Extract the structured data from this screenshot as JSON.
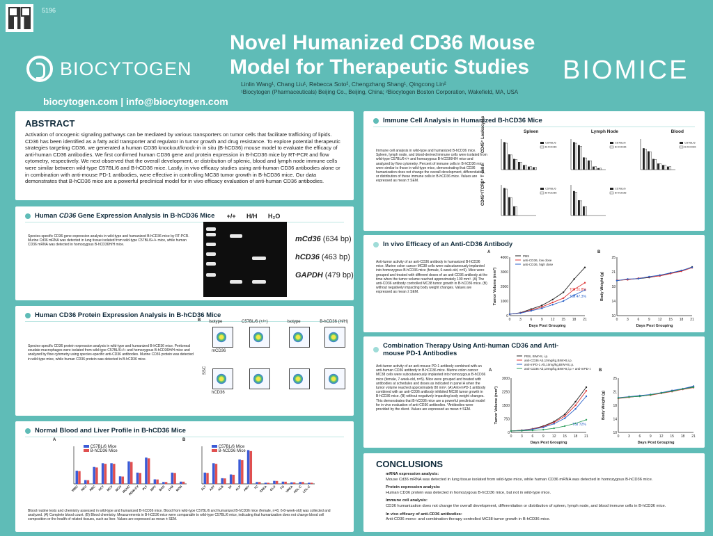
{
  "header": {
    "poster_id": "5196",
    "company": "BIOCYTOGEN",
    "contact": "biocytogen.com  |  info@biocytogen.com",
    "title": "Novel Humanized CD36 Mouse Model for Therapeutic Studies",
    "authors": "Linlin Wang¹, Chang Liu¹, Rebecca Soto², Chengzhang Shang¹, Qingcong Lin²",
    "affiliations": "¹Biocytogen (Pharmaceuticals) Beijing Co., Beijing, China;  ²Biocytogen Boston Corporation, Wakefield, MA, USA",
    "brand_right": "BIOMICE"
  },
  "abstract": {
    "heading": "ABSTRACT",
    "text": "Activation of oncogenic signaling pathways can be mediated by various transporters on tumor cells that facilitate trafficking of lipids. CD36 has been identified as a fatty acid transporter and regulator in tumor growth and drug resistance. To explore potential therapeutic strategies targeting CD36, we generated a human CD36 knockout/knock-in in situ (B-hCD36) mouse model to evaluate the efficacy of anti-human CD36 antibodies. We first confirmed human CD36 gene and protein expression in B-hCD36 mice by RT-PCR and flow cytometry, respectively. We next observed that the overall development, or distribution of splenic, blood and lymph node immune cells were similar between wild-type C57BL/6 and B-hCD36 mice. Lastly, in vivo efficacy studies using anti-human CD36 antibodies alone or in combination with anti-mouse PD-1 antibodies, were effective in controlling MC38 tumor growth in B-hCD36 mice. Our data demonstrates that B-hCD36 mice are a powerful preclinical model for in vivo efficacy evaluation of anti-human CD36 antibodies."
  },
  "gene_expression": {
    "heading_pre": "Human ",
    "heading_it": "CD36",
    "heading_post": " Gene Expression Analysis in B-hCD36 Mice",
    "caption": "Species-specific CD36 gene expression analysis in wild-type and humanized B-hCD36 mice by RT-PCR. Murine Cd36 mRNA was detected in lung tissue isolated from wild-type C57BL/6+/+ mice, while human CD36 mRNA was detected in homozygous B-hCD36H/H mice.",
    "lanes": [
      "+/+",
      "H/H",
      "H₂O"
    ],
    "bands": [
      {
        "gene": "mCd36",
        "size": "(634 bp)"
      },
      {
        "gene": "hCD36",
        "size": "(463 bp)"
      },
      {
        "gene": "GAPDH",
        "size": "(479 bp)"
      }
    ]
  },
  "protein_expression": {
    "heading": "Human CD36 Protein Expression Analysis in B-hCD36 Mice",
    "caption": "Species-specific CD36 protein expression analysis in wild-type and humanized B-hCD36 mice. Peritoneal exudate macrophages were isolated from wild-type C57BL/6+/+ and homozygous B-hCD36H/H mice and analyzed by flow cytometry using species-specific anti-CD36 antibodies. Murine CD36 protein was detected in wild-type mice, while human CD36 protein was detected in B-hCD36 mice.",
    "panel_label": "B",
    "columns": [
      "Isotype",
      "C57BL/6 (+/+)",
      "Isotype",
      "B-hCD36 (H/H)"
    ],
    "row_labels": [
      "mCD36",
      "hCD36"
    ],
    "y_label": "SSC"
  },
  "blood_liver": {
    "heading": "Normal Blood and Liver Profile in B-hCD36 Mice",
    "panel_a": "A",
    "panel_b": "B",
    "legend": [
      "C57BL/6 Mice",
      "B-hCD36 Mice"
    ],
    "a_categories": [
      "WBC",
      "NEU",
      "RBC",
      "HCT",
      "MCV",
      "MCH",
      "MCHC",
      "RDW-CV",
      "PLT",
      "MPV",
      "BAS",
      "LYM",
      "MON"
    ],
    "b_categories": [
      "ALT",
      "AST",
      "ALB",
      "TP",
      "ALP",
      "AMY",
      "TC",
      "CREA",
      "GLU",
      "TG",
      "UREA",
      "HDL-C",
      "LDL-C"
    ],
    "caption": "Blood routine tests and chemistry assessed in wild-type and humanized B-hCD36 mice. Blood from wild-type C57BL/6 and humanized B-hCD36 mice (female, n=8, 6-8-week-old) was collected and analyzed. (A) Complete blood count. (B) Blood chemistry. Measurements in B-hCD36 mice were comparable to wild-type C57BL/6 mice, indicating that humanization does not change blood cell composition or the health of related tissues, such as liver. Values are expressed as mean ± SEM."
  },
  "immune": {
    "heading": "Immune Cell Analysis in Humanized B-hCD36 Mice",
    "caption": "Immune cell analysis in wild-type and humanized B-hCD36 mice. Spleen, lymph node, and blood-derived immune cells were isolated from wild-type C57BL/6+/+ and homozygous B-hCD36H/H mice and analyzed by flow cytometry. Percent of immune cells in B-hCD36 mice were similar to those in wild-type mice, demonstrating that CD36 humanization does not change the overall development, differentiation, or distribution of these immune cells in B-hCD36 mice. Values are expressed as mean ± SEM.",
    "columns": [
      "Spleen",
      "Lymph Node",
      "Blood"
    ],
    "row_labels": [
      "CD45⁺ Leukocytes",
      "CD45⁺/TCRβ⁺ T cells"
    ],
    "legend": [
      "C57BL/6",
      "B-hCD36"
    ]
  },
  "efficacy": {
    "heading": "In vivo Efficacy of an Anti-CD36 Antibody",
    "caption": "Anti-tumor activity of an anti-CD36 antibody in humanized B-hCD36 mice. Murine colon cancer MC38 cells were subcutaneously implanted into homozygous B-hCD36 mice (female, 6-week-old, n=5). Mice were grouped and treated with different doses of an anti-CD36 antibody at the time when the tumor volume reached approximately 100 mm³. (A) The anti-CD36 antibody controlled MC38 tumor growth in B-hCD36 mice. (B) without negatively impacting body weight changes. Values are expressed as mean ± SEM.",
    "panel_a": "A",
    "panel_b": "B",
    "legend": [
      "PBS",
      "anti-CD36, low dose",
      "anti-CD36, high dose"
    ],
    "tgi": [
      "TGI:31.8%",
      "TGI:47.3%"
    ],
    "xlabel": "Days Post Grouping",
    "ylabel_a": "Tumor Volume (mm³)",
    "ylabel_b": "Body Weight (g)"
  },
  "combination": {
    "heading": "Combination Therapy Using Anti-human CD36 and Anti-mouse PD-1 Antibodies",
    "caption": "Anti-tumor activity of an anti-mouse PD-1 antibody combined with an anti-human CD36 antibody in B-hCD36 mice. Murine colon cancer MC38 cells were subcutaneously implanted into homozygous B-hCD36 mice (female, 7-week-old, n=5). Mice were grouped and treated with antibodies at schedules and doses as indicated in panel A when the tumor volume reached approximately 80 mm³. (A) Anti-mPD-1 antibody combined with an anti-CD36 antibody inhibited MC38 tumor growth in B-hCD36 mice. (B) without negatively impacting body weight changes. This demonstrates that B-hCD36 mice are a powerful preclinical model for in vivo evaluation of anti-CD36 antibodies. *Antibodies were provided by the client. Values are expressed as mean ± SEM.",
    "panel_a": "A",
    "panel_b": "B",
    "legend": [
      "PBS, BIW×8, i.p.",
      "anti-CD36 Ab,10mg/kg,BIW×8,i.p.",
      "anti-mPD-1 Ab,10mg/kg,BIW×8,i.p.",
      "anti-CD36 Ab,10mg/kg,BIW×8,i.p.+ anti-mPD-1 Ab,10mg/kg,BIW×8,i.p."
    ],
    "tgi": "TGI 72%",
    "xlabel": "Days Post Grouping",
    "ylabel_a": "Tumor Volume (mm³)",
    "ylabel_b": "Body Weight (g)"
  },
  "conclusions": {
    "heading": "CONCLUSIONS",
    "items": [
      {
        "title": "mRNA expression analysis:",
        "text": "Mouse Cd36 mRNA was detected in lung tissue isolated from wild-type mice, while human CD36 mRNA was detected in homozygous B-hCD36 mice."
      },
      {
        "title": "Protein expression analysis:",
        "text": "Human CD36 protein was detected in homozygous B-hCD36 mice, but not in wild-type mice."
      },
      {
        "title": "Immune cell analysis:",
        "text": "CD36 humanization does not change the overall development, differentiation or distribution of spleen, lymph node, and blood immune cells in B-hCD36 mice."
      },
      {
        "title": "In vivo efficacy of anti-CD36 antibodies:",
        "text": "Anti-CD36 mono- and combination therapy controlled MC38 tumor growth in B-hCD36 mice."
      }
    ]
  },
  "chart_data": [
    {
      "type": "line",
      "title": "",
      "xlabel": "Days Post Grouping",
      "ylabel": "Tumor Volume (mm³)",
      "x": [
        0,
        3,
        6,
        9,
        12,
        15,
        18,
        21
      ],
      "ylim": [
        0,
        4000
      ],
      "series": [
        {
          "name": "PBS",
          "values": [
            100,
            200,
            450,
            700,
            1100,
            1600,
            2500,
            3300
          ]
        },
        {
          "name": "anti-CD36, low dose",
          "values": [
            100,
            180,
            380,
            600,
            900,
            1200,
            1800,
            2250
          ]
        },
        {
          "name": "anti-CD36, high dose",
          "values": [
            100,
            170,
            330,
            500,
            750,
            1000,
            1400,
            1750
          ]
        }
      ]
    },
    {
      "type": "line",
      "title": "",
      "xlabel": "Days Post Grouping",
      "ylabel": "Body Weight (g)",
      "x": [
        0,
        3,
        6,
        9,
        12,
        15,
        18,
        21
      ],
      "ylim": [
        10,
        25
      ],
      "series": [
        {
          "name": "PBS",
          "values": [
            19.0,
            19.3,
            19.5,
            19.8,
            20.3,
            20.9,
            21.5,
            22.5
          ]
        },
        {
          "name": "anti-CD36, low dose",
          "values": [
            19.1,
            19.2,
            19.6,
            19.9,
            20.2,
            20.8,
            21.4,
            22.3
          ]
        },
        {
          "name": "anti-CD36, high dose",
          "values": [
            19.0,
            19.4,
            19.5,
            20.0,
            20.4,
            21.0,
            21.6,
            22.4
          ]
        }
      ]
    },
    {
      "type": "line",
      "title": "",
      "xlabel": "Days Post Grouping",
      "ylabel": "Tumor Volume (mm³)",
      "x": [
        0,
        3,
        6,
        9,
        12,
        15,
        18,
        21
      ],
      "ylim": [
        0,
        3000
      ],
      "series": [
        {
          "name": "PBS, BIW×8, i.p.",
          "values": [
            80,
            120,
            200,
            350,
            600,
            1000,
            1700,
            2500
          ]
        },
        {
          "name": "anti-CD36 Ab,10mg/kg,BIW×8,i.p.",
          "values": [
            80,
            115,
            190,
            320,
            550,
            900,
            1500,
            2300
          ]
        },
        {
          "name": "anti-mPD-1 Ab,10mg/kg,BIW×8,i.p.",
          "values": [
            80,
            110,
            170,
            280,
            480,
            780,
            1300,
            2000
          ]
        },
        {
          "name": "anti-CD36 Ab,10mg/kg,BIW×8,i.p.+ anti-mPD-1 Ab,10mg/kg,BIW×8,i.p.",
          "values": [
            80,
            90,
            110,
            150,
            230,
            350,
            500,
            700
          ]
        }
      ]
    },
    {
      "type": "line",
      "title": "",
      "xlabel": "Days Post Grouping",
      "ylabel": "Body Weight (g)",
      "x": [
        0,
        3,
        6,
        9,
        12,
        15,
        18,
        21
      ],
      "ylim": [
        10,
        25
      ],
      "series": [
        {
          "name": "PBS, BIW×8, i.p.",
          "values": [
            19.5,
            19.8,
            20.0,
            20.4,
            20.9,
            21.5,
            22.0,
            22.6
          ]
        },
        {
          "name": "anti-CD36 Ab,10mg/kg,BIW×8,i.p.",
          "values": [
            19.4,
            19.7,
            20.1,
            20.3,
            20.8,
            21.3,
            21.9,
            22.4
          ]
        },
        {
          "name": "anti-mPD-1 Ab,10mg/kg,BIW×8,i.p.",
          "values": [
            19.6,
            19.9,
            20.2,
            20.5,
            21.0,
            21.6,
            22.1,
            22.8
          ]
        },
        {
          "name": "anti-CD36 Ab,10mg/kg,BIW×8,i.p.+ anti-mPD-1 Ab,10mg/kg,BIW×8,i.p.",
          "values": [
            19.5,
            19.8,
            20.0,
            20.4,
            20.9,
            21.4,
            22.0,
            22.5
          ]
        }
      ]
    }
  ],
  "colors": {
    "background": "#5fbcb7",
    "accent": "#5fbcb7",
    "dark": "#0f2a3a"
  }
}
